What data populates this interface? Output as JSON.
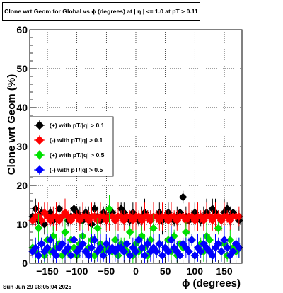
{
  "title": "Clone wrt Geom for Global vs ϕ (degrees) at | η | <= 1.0 at pT > 0.11",
  "timestamp": "Sun Jun 29 08:05:04 2025",
  "chart_data": {
    "type": "scatter",
    "xlabel": "ϕ (degrees)",
    "ylabel": "Clone wrt Geom (%)",
    "xlim": [
      -180,
      180
    ],
    "ylim": [
      0,
      60
    ],
    "xticks": [
      -150,
      -100,
      -50,
      0,
      50,
      100,
      150
    ],
    "yticks": [
      0,
      10,
      20,
      30,
      40,
      50,
      60
    ],
    "grid": true,
    "legend_position": "middle-left",
    "x": [
      -175,
      -170,
      -165,
      -160,
      -155,
      -150,
      -145,
      -140,
      -135,
      -130,
      -125,
      -120,
      -115,
      -110,
      -105,
      -100,
      -95,
      -90,
      -85,
      -80,
      -75,
      -70,
      -65,
      -60,
      -55,
      -50,
      -45,
      -40,
      -35,
      -30,
      -25,
      -20,
      -15,
      -10,
      -5,
      0,
      5,
      10,
      15,
      20,
      25,
      30,
      35,
      40,
      45,
      50,
      55,
      60,
      65,
      70,
      75,
      80,
      85,
      90,
      95,
      100,
      105,
      110,
      115,
      120,
      125,
      130,
      135,
      140,
      145,
      150,
      155,
      160,
      165,
      170,
      175
    ],
    "series": [
      {
        "name": "(+) with pT/|q| > 0.1",
        "color": "#000000",
        "values": [
          12,
          14,
          11,
          13,
          10,
          12,
          13,
          11,
          12,
          14,
          12,
          13,
          11,
          12,
          14,
          13,
          12,
          11,
          13,
          12,
          10,
          14,
          12,
          11,
          13,
          12,
          12,
          13,
          11,
          12,
          14,
          13,
          12,
          11,
          13,
          12,
          11,
          12,
          13,
          12,
          11,
          12,
          12,
          13,
          11,
          12,
          13,
          12,
          11,
          12,
          13,
          17,
          12,
          11,
          12,
          13,
          12,
          11,
          12,
          13,
          12,
          14,
          13,
          12,
          11,
          13,
          14,
          12,
          13,
          12,
          11
        ]
      },
      {
        "name": "(-) with pT/|q| > 0.1",
        "color": "#ff0000",
        "values": [
          11,
          12,
          12,
          11,
          13,
          12,
          11,
          12,
          12,
          11,
          12,
          13,
          12,
          11,
          12,
          12,
          11,
          12,
          12,
          11,
          12,
          12,
          11,
          12,
          12,
          11,
          12,
          12,
          11,
          12,
          12,
          11,
          12,
          12,
          11,
          12,
          12,
          11,
          12,
          12,
          11,
          12,
          12,
          11,
          12,
          12,
          11,
          12,
          12,
          11,
          12,
          12,
          11,
          12,
          12,
          11,
          12,
          12,
          11,
          12,
          12,
          11,
          12,
          12,
          11,
          12,
          12,
          11,
          12,
          12,
          12
        ]
      },
      {
        "name": "(+) with pT/|q| > 0.5",
        "color": "#00e000",
        "values": [
          4,
          3,
          9,
          5,
          2,
          6,
          3,
          7,
          4,
          5,
          2,
          8,
          3,
          6,
          4,
          2,
          5,
          7,
          3,
          4,
          6,
          2,
          9,
          5,
          3,
          4,
          14,
          3,
          6,
          2,
          5,
          4,
          3,
          8,
          2,
          5,
          3,
          7,
          4,
          2,
          6,
          9,
          3,
          5,
          2,
          4,
          6,
          3,
          7,
          2,
          5,
          4,
          8,
          3,
          6,
          2,
          4,
          5,
          3,
          7,
          6,
          2,
          4,
          9,
          3,
          5,
          2,
          6,
          4,
          3,
          4
        ]
      },
      {
        "name": "(-) with pT/|q| > 0.5",
        "color": "#0000ff",
        "values": [
          3,
          4,
          2,
          5,
          3,
          4,
          6,
          3,
          2,
          4,
          5,
          3,
          4,
          2,
          6,
          3,
          4,
          5,
          3,
          2,
          4,
          6,
          3,
          4,
          2,
          5,
          3,
          4,
          3,
          4,
          4,
          3,
          5,
          2,
          4,
          3,
          6,
          4,
          2,
          5,
          3,
          4,
          3,
          5,
          2,
          4,
          3,
          6,
          4,
          3,
          2,
          5,
          4,
          3,
          6,
          2,
          4,
          3,
          5,
          4,
          3,
          2,
          4,
          5,
          3,
          6,
          4,
          2,
          3,
          5,
          4
        ]
      }
    ]
  }
}
